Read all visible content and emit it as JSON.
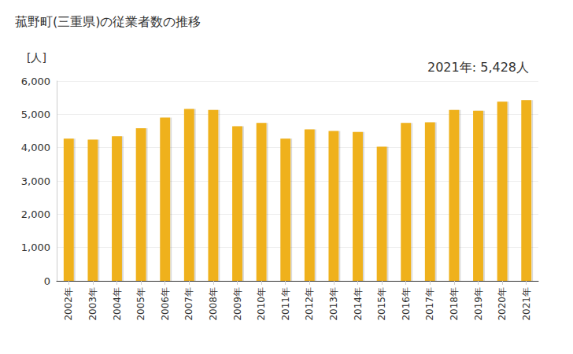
{
  "chart_data": {
    "type": "bar",
    "title": "菰野町(三重県)の従業者数の推移",
    "y_label": "[人]",
    "annotation": "2021年: 5,428人",
    "categories": [
      "2002年",
      "2003年",
      "2004年",
      "2005年",
      "2006年",
      "2007年",
      "2008年",
      "2009年",
      "2010年",
      "2011年",
      "2012年",
      "2013年",
      "2014年",
      "2015年",
      "2016年",
      "2017年",
      "2018年",
      "2019年",
      "2020年",
      "2021年"
    ],
    "values": [
      4270,
      4240,
      4340,
      4580,
      4900,
      5160,
      5130,
      4640,
      4740,
      4270,
      4550,
      4500,
      4470,
      4030,
      4740,
      4760,
      5130,
      5110,
      5380,
      5428
    ],
    "color": "#efb11a",
    "ylim": [
      0,
      6000
    ],
    "yticks": [
      0,
      {
        "value": 1000,
        "label": "1,000"
      },
      {
        "value": 2000,
        "label": "2,000"
      },
      {
        "value": 3000,
        "label": "3,000"
      },
      {
        "value": 4000,
        "label": "4,000"
      },
      {
        "value": 5000,
        "label": "5,000"
      },
      {
        "value": 6000,
        "label": "6,000"
      }
    ],
    "grid": true
  }
}
